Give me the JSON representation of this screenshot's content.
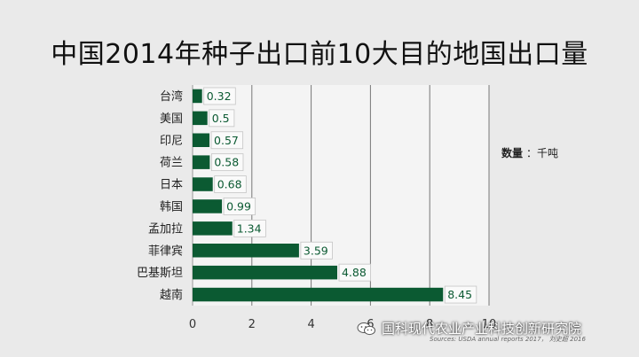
{
  "title": "中国2014年种子出口前10大目的地国出口量",
  "unit_note": {
    "label": "数量",
    "sep": "：",
    "unit": "千吨"
  },
  "watermark": "国科现代农业产业科技创新研究院",
  "source": "Sources: USDA annual reports 2017，",
  "source_handwritten": "刘史超 2016",
  "colors": {
    "bar": "#0b5a32",
    "label": "#0b5a32",
    "grid": "#777777",
    "plot_bg": "#f4f4f4"
  },
  "chart_data": {
    "type": "bar",
    "orientation": "horizontal",
    "categories": [
      "台湾",
      "美国",
      "印尼",
      "荷兰",
      "日本",
      "韩国",
      "孟加拉",
      "菲律宾",
      "巴基斯坦",
      "越南"
    ],
    "values": [
      0.32,
      0.5,
      0.57,
      0.58,
      0.68,
      0.99,
      1.34,
      3.59,
      4.88,
      8.45
    ],
    "value_labels": [
      "0.32",
      "0.5",
      "0.57",
      "0.58",
      "0.68",
      "0.99",
      "1.34",
      "3.59",
      "4.88",
      "8.45"
    ],
    "xlim": [
      0,
      10
    ],
    "xticks": [
      0,
      2,
      4,
      6,
      8,
      10
    ],
    "xtick_labels": [
      "0",
      "2",
      "4",
      "6",
      "8",
      "10"
    ],
    "grid": true,
    "legend": "none"
  }
}
